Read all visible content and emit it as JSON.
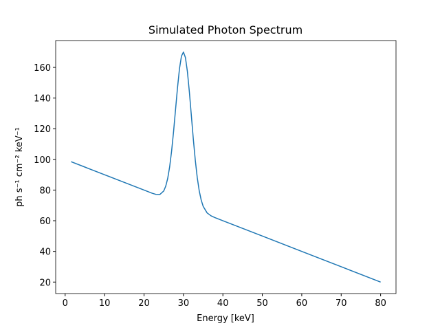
{
  "chart_data": {
    "type": "line",
    "title": "Simulated Photon Spectrum",
    "x_label": "Energy [keV]",
    "y_label": "ph s⁻¹ cm⁻² keV⁻¹",
    "x": [
      1.5,
      5,
      10,
      15,
      20,
      22,
      23,
      24,
      25,
      25.5,
      26,
      26.5,
      27,
      27.5,
      28,
      28.5,
      29,
      29.5,
      30,
      30.5,
      31,
      31.5,
      32,
      32.5,
      33,
      33.5,
      34,
      34.5,
      35,
      36,
      37,
      38,
      40,
      50,
      60,
      70,
      80
    ],
    "values": [
      98.5,
      95,
      90,
      85,
      80,
      78.0,
      77.2,
      77.1,
      79.4,
      82.5,
      87.5,
      95.1,
      105.5,
      118.3,
      132.7,
      147.0,
      159.3,
      167.4,
      170,
      166.4,
      157.3,
      144.0,
      128.7,
      113.3,
      99.5,
      88.1,
      79.5,
      73.5,
      69.4,
      65.1,
      63.2,
      62.0,
      60,
      50,
      40,
      30,
      20
    ],
    "color": "#1f77b4",
    "xlim": [
      -2.4,
      83.9
    ],
    "ylim": [
      12.5,
      177.5
    ],
    "xticks": [
      0,
      10,
      20,
      30,
      40,
      50,
      60,
      70,
      80
    ],
    "yticks": [
      20,
      40,
      60,
      80,
      100,
      120,
      140,
      160
    ]
  }
}
